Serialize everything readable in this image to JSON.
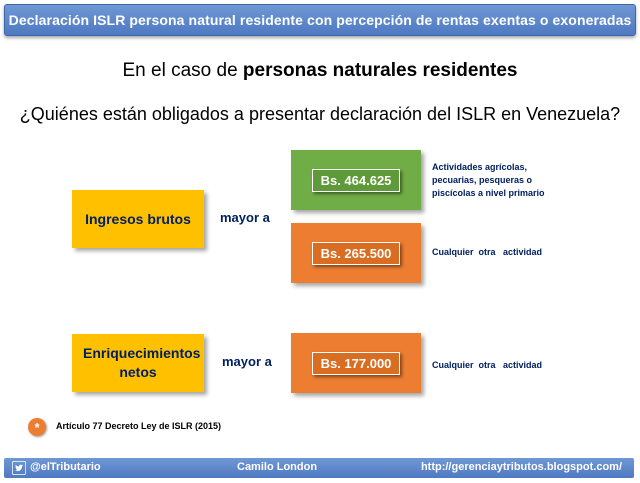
{
  "header": {
    "title": "Declaración ISLR persona natural residente con percepción de rentas exentas o exoneradas"
  },
  "subtitle": {
    "prefix": "En el caso de ",
    "bold": "personas naturales residentes"
  },
  "question": "¿Quiénes están obligados a presentar declaración del ISLR en Venezuela?",
  "rows": [
    {
      "label": "Ingresos brutos",
      "connector": "mayor a",
      "thresholds": [
        {
          "amount": "Bs. 464.625",
          "color": "#70ad47",
          "description": "Actividades agrícolas, pecuarias, pesqueras o piscícolas a nivel primario"
        },
        {
          "amount": "Bs. 265.500",
          "color": "#ed7d31",
          "description": "Cualquier  otra   actividad"
        }
      ]
    },
    {
      "label": "Enriquecimientos netos",
      "connector": "mayor a",
      "thresholds": [
        {
          "amount": "Bs. 177.000",
          "color": "#ed7d31",
          "description": "Cualquier  otra   actividad"
        }
      ]
    }
  ],
  "note": {
    "symbol": "*",
    "text": "Artículo 77 Decreto Ley de ISLR (2015)"
  },
  "footer": {
    "icon": "twitter-bird-icon",
    "handle": "@elTributario",
    "author": "Camilo London",
    "url": "http://gerenciaytributos.blogspot.com/"
  },
  "colors": {
    "header": "#4f79c2",
    "yellow": "#ffc000",
    "green": "#70ad47",
    "orange": "#ed7d31",
    "navy": "#002060"
  }
}
